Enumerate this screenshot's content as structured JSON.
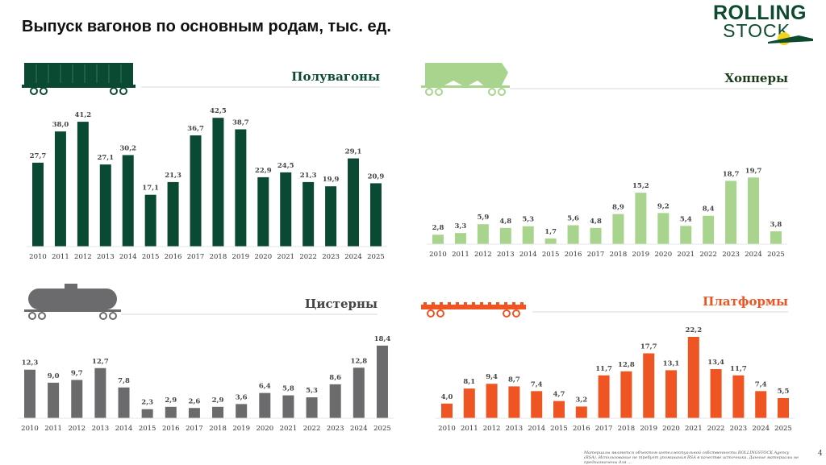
{
  "header": {
    "title": "Выпуск вагонов по основным родам, тыс. ед."
  },
  "logo": {
    "line1": "ROLLING",
    "line2": "STOCK"
  },
  "footer": {
    "text": "Материалы являются объектом интеллектуальной собственности ROLLINGSTOCK Agency (RSA). Использование не требует упоминания RSA в качестве источника. Данные материалы не предназначены для ...",
    "page": "4"
  },
  "chart_data": [
    {
      "type": "bar",
      "title": "Полувагоны",
      "icon": "gondola-wagon-icon",
      "color": "#0b4a32",
      "title_color": "#0b4a32",
      "categories": [
        "2010",
        "2011",
        "2012",
        "2013",
        "2014",
        "2015",
        "2016",
        "2017",
        "2018",
        "2019",
        "2020",
        "2021",
        "2022",
        "2023",
        "2024",
        "2025"
      ],
      "values": [
        27.7,
        38.0,
        41.2,
        27.1,
        30.2,
        17.1,
        21.3,
        36.7,
        42.5,
        38.7,
        22.9,
        24.5,
        21.3,
        19.9,
        29.1,
        20.9
      ],
      "labels": [
        "27,7",
        "38,0",
        "41,2",
        "27,1",
        "30,2",
        "17,1",
        "21,3",
        "36,7",
        "42,5",
        "38,7",
        "22,9",
        "24,5",
        "21,3",
        "19,9",
        "29,1",
        "20,9"
      ]
    },
    {
      "type": "bar",
      "title": "Хопперы",
      "icon": "hopper-wagon-icon",
      "color": "#a8d48e",
      "title_color": "#1a3a1a",
      "categories": [
        "2010",
        "2011",
        "2012",
        "2013",
        "2014",
        "2015",
        "2016",
        "2017",
        "2018",
        "2019",
        "2020",
        "2021",
        "2022",
        "2023",
        "2024",
        "2025"
      ],
      "values": [
        2.8,
        3.3,
        5.9,
        4.8,
        5.3,
        1.7,
        5.6,
        4.8,
        8.9,
        15.2,
        9.2,
        5.4,
        8.4,
        18.7,
        19.7,
        3.8
      ],
      "labels": [
        "2,8",
        "3,3",
        "5,9",
        "4,8",
        "5,3",
        "1,7",
        "5,6",
        "4,8",
        "8,9",
        "15,2",
        "9,2",
        "5,4",
        "8,4",
        "18,7",
        "19,7",
        "3,8"
      ]
    },
    {
      "type": "bar",
      "title": "Цистерны",
      "icon": "tank-wagon-icon",
      "color": "#6b6b6d",
      "title_color": "#444444",
      "categories": [
        "2010",
        "2011",
        "2012",
        "2013",
        "2014",
        "2015",
        "2016",
        "2017",
        "2018",
        "2019",
        "2020",
        "2021",
        "2022",
        "2023",
        "2024",
        "2025"
      ],
      "values": [
        12.3,
        9.0,
        9.7,
        12.7,
        7.8,
        2.3,
        2.9,
        2.6,
        2.9,
        3.6,
        6.4,
        5.8,
        5.3,
        8.6,
        12.8,
        18.4
      ],
      "labels": [
        "12,3",
        "9,0",
        "9,7",
        "12,7",
        "7,8",
        "2,3",
        "2,9",
        "2,6",
        "2,9",
        "3,6",
        "6,4",
        "5,8",
        "5,3",
        "8,6",
        "12,8",
        "18,4"
      ]
    },
    {
      "type": "bar",
      "title": "Платформы",
      "icon": "platform-wagon-icon",
      "color": "#ee5522",
      "title_color": "#ee5522",
      "categories": [
        "2010",
        "2011",
        "2012",
        "2013",
        "2014",
        "2015",
        "2016",
        "2017",
        "2018",
        "2019",
        "2020",
        "2021",
        "2022",
        "2023",
        "2024",
        "2025"
      ],
      "values": [
        4.0,
        8.1,
        9.4,
        8.7,
        7.4,
        4.7,
        3.2,
        11.7,
        12.8,
        17.7,
        13.1,
        22.2,
        13.4,
        11.7,
        7.4,
        5.5
      ],
      "labels": [
        "4,0",
        "8,1",
        "9,4",
        "8,7",
        "7,4",
        "4,7",
        "3,2",
        "11,7",
        "12,8",
        "17,7",
        "13,1",
        "22,2",
        "13,4",
        "11,7",
        "7,4",
        "5,5"
      ]
    }
  ]
}
